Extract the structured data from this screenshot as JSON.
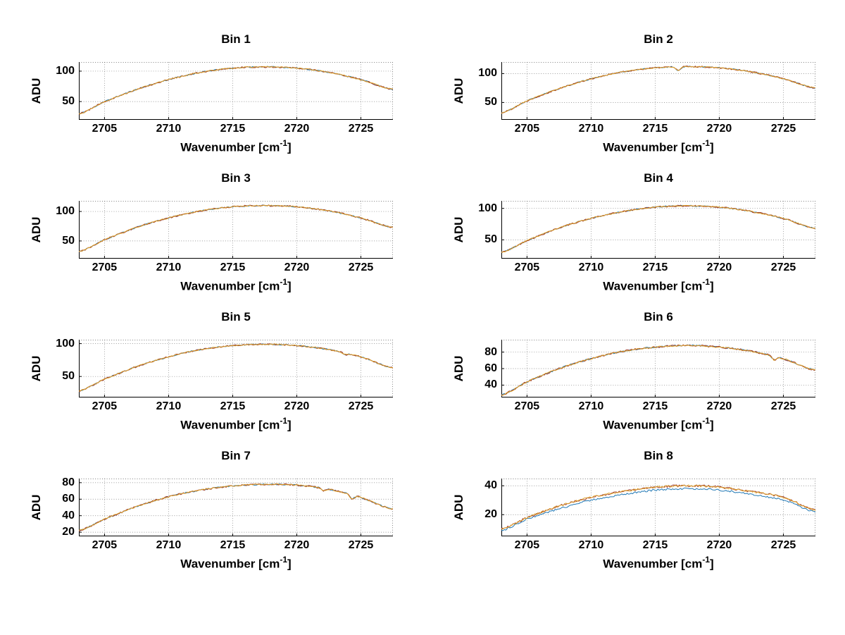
{
  "page": {
    "background": "#ffffff"
  },
  "axis_labels": {
    "ylabel": "ADU",
    "xlabel_prefix": "Wavenumber [cm",
    "xlabel_sup": "-1",
    "xlabel_suffix": "]"
  },
  "layout_hints": {
    "grid": true,
    "legend": "none",
    "rows": 4,
    "cols": 2
  },
  "chart_data": [
    {
      "type": "line",
      "title": "Bin 1",
      "xlabel": "Wavenumber [cm-1]",
      "ylabel": "ADU",
      "xlim": [
        2703,
        2727.5
      ],
      "ylim": [
        20,
        115
      ],
      "xticks": [
        2705,
        2710,
        2715,
        2720,
        2725
      ],
      "yticks": [
        50,
        100
      ],
      "x": [
        2703,
        2705,
        2707.5,
        2710,
        2712.5,
        2715,
        2717.5,
        2720,
        2722.5,
        2725,
        2727.5
      ],
      "series": [
        {
          "name": "series-blue",
          "color": "#1f77b4",
          "noise": 1.0,
          "seed": 11,
          "values": [
            30,
            50,
            70,
            86,
            98,
            105,
            107,
            105,
            98,
            86,
            70
          ]
        },
        {
          "name": "series-red",
          "color": "#a03c2d",
          "noise": 1.3,
          "seed": 12,
          "values": [
            30,
            50,
            70,
            86,
            98,
            105,
            107,
            105,
            98,
            86,
            70
          ]
        },
        {
          "name": "series-yellow",
          "color": "#dfa32a",
          "noise": 0.9,
          "seed": 13,
          "values": [
            30,
            50,
            70,
            86,
            98,
            105,
            107,
            105,
            98,
            86,
            70
          ]
        }
      ],
      "spikes": []
    },
    {
      "type": "line",
      "title": "Bin 2",
      "xlabel": "Wavenumber [cm-1]",
      "ylabel": "ADU",
      "xlim": [
        2703,
        2727.5
      ],
      "ylim": [
        20,
        120
      ],
      "xticks": [
        2705,
        2710,
        2715,
        2720,
        2725
      ],
      "yticks": [
        50,
        100
      ],
      "x": [
        2703,
        2705,
        2707.5,
        2710,
        2712.5,
        2715,
        2717.5,
        2720,
        2722.5,
        2725,
        2727.5
      ],
      "series": [
        {
          "name": "series-blue",
          "color": "#1f77b4",
          "noise": 1.0,
          "seed": 21,
          "values": [
            32,
            53,
            74,
            91,
            103,
            110,
            112,
            110,
            103,
            91,
            75
          ]
        },
        {
          "name": "series-red",
          "color": "#a03c2d",
          "noise": 1.3,
          "seed": 22,
          "values": [
            32,
            53,
            74,
            91,
            103,
            110,
            112,
            110,
            103,
            91,
            75
          ]
        },
        {
          "name": "series-yellow",
          "color": "#dfa32a",
          "noise": 0.9,
          "seed": 23,
          "values": [
            32,
            53,
            74,
            91,
            103,
            110,
            112,
            110,
            103,
            91,
            75
          ]
        }
      ],
      "spikes": [
        {
          "x": 2716.8,
          "dy": -7
        }
      ]
    },
    {
      "type": "line",
      "title": "Bin 3",
      "xlabel": "Wavenumber [cm-1]",
      "ylabel": "ADU",
      "xlim": [
        2703,
        2727.5
      ],
      "ylim": [
        20,
        118
      ],
      "xticks": [
        2705,
        2710,
        2715,
        2720,
        2725
      ],
      "yticks": [
        50,
        100
      ],
      "x": [
        2703,
        2705,
        2707.5,
        2710,
        2712.5,
        2715,
        2717.5,
        2720,
        2722.5,
        2725,
        2727.5
      ],
      "series": [
        {
          "name": "series-blue",
          "color": "#1f77b4",
          "noise": 1.0,
          "seed": 31,
          "values": [
            32,
            52,
            73,
            89,
            101,
            108,
            110,
            108,
            101,
            89,
            73
          ]
        },
        {
          "name": "series-red",
          "color": "#a03c2d",
          "noise": 1.3,
          "seed": 32,
          "values": [
            32,
            52,
            73,
            89,
            101,
            108,
            110,
            108,
            101,
            89,
            73
          ]
        },
        {
          "name": "series-yellow",
          "color": "#dfa32a",
          "noise": 0.9,
          "seed": 33,
          "values": [
            32,
            52,
            73,
            89,
            101,
            108,
            110,
            108,
            101,
            89,
            73
          ]
        }
      ],
      "spikes": []
    },
    {
      "type": "line",
      "title": "Bin 4",
      "xlabel": "Wavenumber [cm-1]",
      "ylabel": "ADU",
      "xlim": [
        2703,
        2727.5
      ],
      "ylim": [
        20,
        112
      ],
      "xticks": [
        2705,
        2710,
        2715,
        2720,
        2725
      ],
      "yticks": [
        50,
        100
      ],
      "x": [
        2703,
        2705,
        2707.5,
        2710,
        2712.5,
        2715,
        2717.5,
        2720,
        2722.5,
        2725,
        2727.5
      ],
      "series": [
        {
          "name": "series-blue",
          "color": "#1f77b4",
          "noise": 1.0,
          "seed": 41,
          "values": [
            30,
            49,
            69,
            84,
            95,
            102,
            104,
            102,
            95,
            84,
            68
          ]
        },
        {
          "name": "series-red",
          "color": "#a03c2d",
          "noise": 1.3,
          "seed": 42,
          "values": [
            30,
            49,
            69,
            84,
            95,
            102,
            104,
            102,
            95,
            84,
            68
          ]
        },
        {
          "name": "series-yellow",
          "color": "#dfa32a",
          "noise": 0.9,
          "seed": 43,
          "values": [
            30,
            49,
            69,
            84,
            95,
            102,
            104,
            102,
            95,
            84,
            68
          ]
        }
      ],
      "spikes": []
    },
    {
      "type": "line",
      "title": "Bin 5",
      "xlabel": "Wavenumber [cm-1]",
      "ylabel": "ADU",
      "xlim": [
        2703,
        2727.5
      ],
      "ylim": [
        18,
        106
      ],
      "xticks": [
        2705,
        2710,
        2715,
        2720,
        2725
      ],
      "yticks": [
        50,
        100
      ],
      "x": [
        2703,
        2705,
        2707.5,
        2710,
        2712.5,
        2715,
        2717.5,
        2720,
        2722.5,
        2725,
        2727.5
      ],
      "series": [
        {
          "name": "series-blue",
          "color": "#1f77b4",
          "noise": 0.9,
          "seed": 51,
          "values": [
            28,
            46,
            65,
            80,
            91,
            97,
            99,
            97,
            91,
            80,
            63
          ]
        },
        {
          "name": "series-red",
          "color": "#a03c2d",
          "noise": 1.1,
          "seed": 52,
          "values": [
            28,
            46,
            65,
            80,
            91,
            97,
            99,
            97,
            91,
            80,
            63
          ]
        },
        {
          "name": "series-yellow",
          "color": "#dfa32a",
          "noise": 0.8,
          "seed": 53,
          "values": [
            28,
            46,
            65,
            80,
            91,
            97,
            99,
            97,
            91,
            80,
            63
          ]
        }
      ],
      "spikes": [
        {
          "x": 2723.8,
          "dy": -3
        }
      ]
    },
    {
      "type": "line",
      "title": "Bin 6",
      "xlabel": "Wavenumber [cm-1]",
      "ylabel": "ADU",
      "xlim": [
        2703,
        2727.5
      ],
      "ylim": [
        25,
        95
      ],
      "xticks": [
        2705,
        2710,
        2715,
        2720,
        2725
      ],
      "yticks": [
        40,
        60,
        80
      ],
      "x": [
        2703,
        2705,
        2707.5,
        2710,
        2712.5,
        2715,
        2717.5,
        2720,
        2722.5,
        2725,
        2727.5
      ],
      "series": [
        {
          "name": "series-blue",
          "color": "#1f77b4",
          "noise": 0.9,
          "seed": 61,
          "values": [
            28,
            44,
            60,
            72,
            81,
            86,
            88,
            86,
            81,
            72,
            58
          ]
        },
        {
          "name": "series-red",
          "color": "#a03c2d",
          "noise": 1.1,
          "seed": 62,
          "values": [
            28,
            44,
            60,
            72,
            81,
            86,
            88,
            86,
            81,
            72,
            58
          ]
        },
        {
          "name": "series-yellow",
          "color": "#dfa32a",
          "noise": 0.8,
          "seed": 63,
          "values": [
            28,
            44,
            60,
            72,
            81,
            86,
            88,
            86,
            81,
            72,
            58
          ]
        }
      ],
      "spikes": [
        {
          "x": 2724.3,
          "dy": -5
        }
      ]
    },
    {
      "type": "line",
      "title": "Bin 7",
      "xlabel": "Wavenumber [cm-1]",
      "ylabel": "ADU",
      "xlim": [
        2703,
        2727.5
      ],
      "ylim": [
        15,
        85
      ],
      "xticks": [
        2705,
        2710,
        2715,
        2720,
        2725
      ],
      "yticks": [
        20,
        40,
        60,
        80
      ],
      "x": [
        2703,
        2705,
        2707.5,
        2710,
        2712.5,
        2715,
        2717.5,
        2720,
        2722.5,
        2725,
        2727.5
      ],
      "series": [
        {
          "name": "series-blue",
          "color": "#1f77b4",
          "noise": 0.8,
          "seed": 71,
          "values": [
            22,
            36,
            51,
            63,
            71,
            76,
            78,
            77,
            72,
            62,
            48
          ]
        },
        {
          "name": "series-red",
          "color": "#a03c2d",
          "noise": 1.0,
          "seed": 72,
          "values": [
            22,
            36,
            51,
            63,
            71,
            76,
            78,
            77,
            72,
            62,
            48
          ]
        },
        {
          "name": "series-yellow",
          "color": "#dfa32a",
          "noise": 0.7,
          "seed": 73,
          "values": [
            22,
            36,
            51,
            63,
            71,
            76,
            78,
            77,
            72,
            62,
            48
          ]
        }
      ],
      "spikes": [
        {
          "x": 2724.3,
          "dy": -5
        },
        {
          "x": 2722.1,
          "dy": -3
        }
      ]
    },
    {
      "type": "line",
      "title": "Bin 8",
      "xlabel": "Wavenumber [cm-1]",
      "ylabel": "ADU",
      "xlim": [
        2703,
        2727.5
      ],
      "ylim": [
        5,
        45
      ],
      "xticks": [
        2705,
        2710,
        2715,
        2720,
        2725
      ],
      "yticks": [
        20,
        40
      ],
      "x": [
        2703,
        2705,
        2707.5,
        2710,
        2712.5,
        2715,
        2717.5,
        2720,
        2722.5,
        2725,
        2727.5
      ],
      "series": [
        {
          "name": "series-blue",
          "color": "#1f77b4",
          "noise": 0.6,
          "seed": 81,
          "values": [
            9,
            17,
            24,
            30,
            34,
            37,
            38,
            37,
            34,
            30,
            22
          ]
        },
        {
          "name": "series-red",
          "color": "#a03c2d",
          "noise": 0.8,
          "seed": 82,
          "values": [
            10,
            18,
            26,
            32,
            36,
            39,
            40,
            39,
            36,
            32,
            23
          ]
        },
        {
          "name": "series-yellow",
          "color": "#dfa32a",
          "noise": 0.6,
          "seed": 83,
          "values": [
            10,
            18,
            26,
            32,
            36,
            39,
            40,
            39,
            36,
            32,
            23
          ]
        }
      ],
      "spikes": []
    }
  ]
}
